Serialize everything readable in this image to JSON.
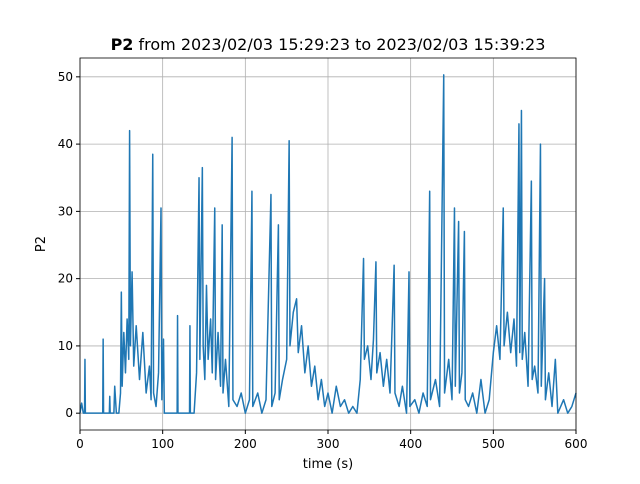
{
  "chart_data": {
    "type": "line",
    "title": {
      "series": "P2",
      "text": "from 2023/02/03 15:29:23 to 2023/02/03 15:39:23"
    },
    "x_label": "time (s)",
    "y_label": "P2",
    "xlim": [
      0,
      600
    ],
    "xticks": [
      0,
      100,
      200,
      300,
      400,
      500,
      600
    ],
    "ylim": [
      -2.5,
      52.8
    ],
    "yticks": [
      0,
      10,
      20,
      30,
      40,
      50
    ],
    "grid": true,
    "series": [
      {
        "name": "P2",
        "color": "#1f77b4",
        "x": [
          0,
          2,
          4,
          5.5,
          6,
          6.5,
          10,
          27.5,
          28,
          28.5,
          35.5,
          36,
          36.5,
          41,
          42,
          44,
          47,
          49,
          50,
          51,
          53,
          55,
          57,
          59,
          60,
          61,
          63,
          65,
          68,
          72,
          76,
          80,
          84,
          86,
          88,
          89,
          92,
          95,
          98,
          99,
          101,
          102,
          110,
          117.5,
          118,
          118.5,
          132.5,
          133,
          133.5,
          138,
          141,
          144,
          145,
          148,
          149,
          151,
          153,
          155,
          158,
          160,
          163,
          164,
          167,
          170,
          172,
          173,
          176,
          180,
          184,
          185,
          190,
          195,
          200,
          205,
          208,
          209,
          215,
          220,
          225,
          231,
          232,
          236,
          240,
          241,
          245,
          250,
          253,
          254,
          258,
          262,
          264,
          268,
          272,
          276,
          280,
          284,
          288,
          292,
          296,
          300,
          305,
          310,
          315,
          320,
          325,
          330,
          335,
          339,
          343,
          344,
          348,
          352,
          355,
          358,
          359,
          363,
          367,
          371,
          375,
          380,
          381,
          386,
          390,
          395,
          398,
          399,
          405,
          410,
          415,
          420,
          423,
          424,
          430,
          435,
          440,
          441,
          446,
          450,
          453,
          454,
          458,
          459,
          462,
          465,
          466,
          470,
          475,
          480,
          485,
          490,
          495,
          500,
          504,
          508,
          512,
          513,
          517,
          521,
          525,
          528,
          531,
          532,
          534,
          535,
          538,
          542,
          546,
          547,
          550,
          554,
          557,
          558,
          562,
          563,
          567,
          571,
          575,
          578,
          585,
          590,
          595,
          600
        ],
        "values": [
          0,
          1.5,
          0,
          0,
          8,
          0,
          0,
          0,
          11,
          0,
          0,
          2.5,
          0,
          0,
          4,
          0,
          0,
          3,
          18,
          4,
          12,
          6,
          14,
          8,
          42,
          10,
          21,
          7,
          13,
          5,
          12,
          3,
          7,
          2,
          38.5,
          3,
          1,
          6,
          30.5,
          2,
          11,
          0,
          0,
          0,
          14.5,
          0,
          0,
          13,
          0,
          0,
          6,
          35,
          8,
          36.5,
          10,
          5,
          19,
          8,
          14,
          6,
          30.5,
          5,
          12,
          4,
          28,
          3,
          8,
          1,
          41,
          2,
          1,
          3,
          0,
          2,
          33,
          1,
          3,
          0,
          2,
          32.5,
          1,
          3,
          28,
          2,
          5,
          8,
          40.5,
          10,
          15,
          17,
          9,
          13,
          6,
          10,
          4,
          7,
          2,
          5,
          1,
          3,
          0,
          4,
          1,
          2,
          0,
          1,
          0,
          5,
          23,
          8,
          10,
          5,
          11,
          22.5,
          6,
          9,
          4,
          8,
          3,
          22,
          3,
          1,
          4,
          0,
          21,
          1,
          2,
          0,
          3,
          1,
          33,
          2,
          5,
          1,
          50.3,
          3,
          8,
          2,
          30.5,
          4,
          28.5,
          3,
          6,
          27,
          2,
          1,
          3,
          0,
          5,
          0,
          2,
          9,
          13,
          8,
          30.5,
          10,
          15,
          9,
          14,
          7,
          43,
          9,
          45,
          8,
          12,
          4,
          34.5,
          5,
          7,
          3,
          40,
          4,
          20,
          2,
          6,
          1,
          8,
          0,
          2,
          0,
          1,
          3
        ]
      }
    ]
  }
}
